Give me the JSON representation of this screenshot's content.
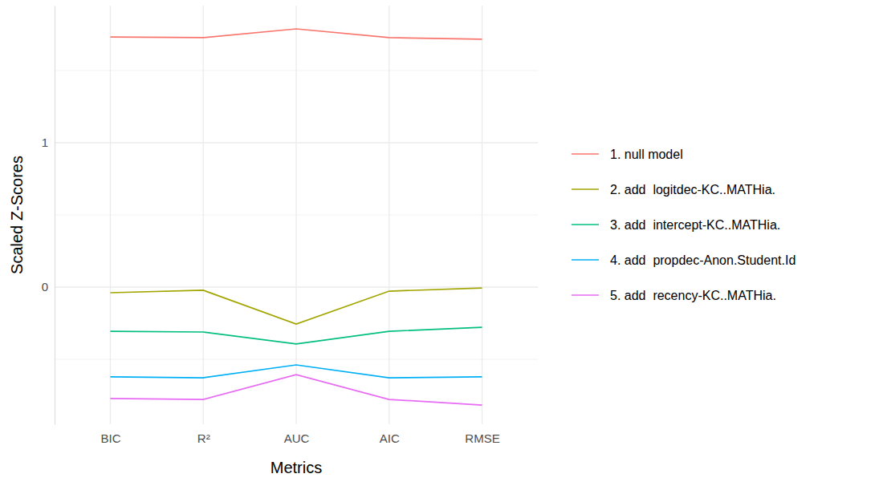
{
  "chart_data": {
    "type": "line",
    "x_label": "Metrics",
    "y_label": "Scaled Z-Scores",
    "categories": [
      "BIC",
      "R²",
      "AUC",
      "AIC",
      "RMSE"
    ],
    "series": [
      {
        "name": "1. null model",
        "color": "#F8766D",
        "values": [
          1.733,
          1.728,
          1.789,
          1.728,
          1.717
        ]
      },
      {
        "name": "2. add  logitdec-KC..MATHia.",
        "color": "#A3A500",
        "values": [
          -0.039,
          -0.022,
          -0.256,
          -0.028,
          -0.006
        ]
      },
      {
        "name": "3. add  intercept-KC..MATHia.",
        "color": "#00BF7D",
        "values": [
          -0.306,
          -0.311,
          -0.394,
          -0.306,
          -0.278
        ]
      },
      {
        "name": "4. add  propdec-Anon.Student.Id",
        "color": "#00B0F6",
        "values": [
          -0.622,
          -0.628,
          -0.539,
          -0.628,
          -0.622
        ]
      },
      {
        "name": "5. add  recency-KC..MATHia.",
        "color": "#E76BF3",
        "values": [
          -0.772,
          -0.778,
          -0.606,
          -0.778,
          -0.817
        ]
      }
    ],
    "ylim": [
      -0.95,
      1.95
    ],
    "yticks": [
      0,
      1
    ],
    "grid": true,
    "legend": "right"
  }
}
